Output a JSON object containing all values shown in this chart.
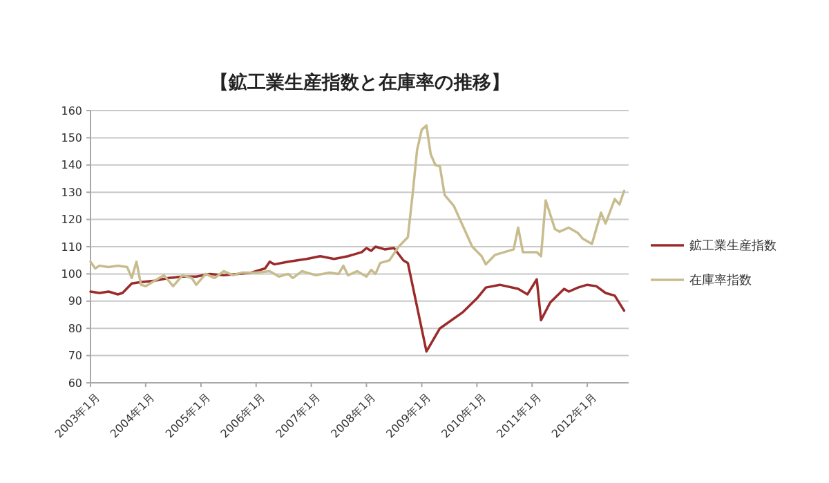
{
  "chart_data": {
    "type": "line",
    "title": "【鉱工業生産指数と在庫率の推移】",
    "xlim": [
      "2003-01",
      "2012-10"
    ],
    "xticks": [
      {
        "value": "2003-01",
        "label": "2003年1月"
      },
      {
        "value": "2004-01",
        "label": "2004年1月"
      },
      {
        "value": "2005-01",
        "label": "2005年1月"
      },
      {
        "value": "2006-01",
        "label": "2006年1月"
      },
      {
        "value": "2007-01",
        "label": "2007年1月"
      },
      {
        "value": "2008-01",
        "label": "2008年1月"
      },
      {
        "value": "2009-01",
        "label": "2009年1月"
      },
      {
        "value": "2010-01",
        "label": "2010年1月"
      },
      {
        "value": "2011-01",
        "label": "2011年1月"
      },
      {
        "value": "2012-01",
        "label": "2012年1月"
      }
    ],
    "ylim": [
      60,
      160
    ],
    "yticks": [
      60,
      70,
      80,
      90,
      100,
      110,
      120,
      130,
      140,
      150,
      160
    ],
    "grid": "y",
    "legend": "right",
    "marker": "none",
    "line_style": "solid",
    "series": [
      {
        "name": "鉱工業生産指数",
        "color": "#9b2a2a",
        "x": [
          "2003-01",
          "2003-03",
          "2003-05",
          "2003-07",
          "2003-08",
          "2003-10",
          "2003-12",
          "2004-03",
          "2004-06",
          "2004-09",
          "2004-12",
          "2005-03",
          "2005-06",
          "2005-09",
          "2005-12",
          "2006-03",
          "2006-04",
          "2006-05",
          "2006-08",
          "2006-12",
          "2007-03",
          "2007-06",
          "2007-09",
          "2007-12",
          "2008-01",
          "2008-02",
          "2008-03",
          "2008-05",
          "2008-07",
          "2008-09",
          "2008-10",
          "2009-02",
          "2009-05",
          "2009-10",
          "2010-01",
          "2010-03",
          "2010-06",
          "2010-10",
          "2010-12",
          "2011-02",
          "2011-03",
          "2011-05",
          "2011-08",
          "2011-09",
          "2011-11",
          "2012-01",
          "2012-03",
          "2012-05",
          "2012-07",
          "2012-09"
        ],
        "values": [
          93.5,
          93,
          93.5,
          92.5,
          93,
          96.5,
          97,
          97.5,
          98.5,
          99,
          99,
          100,
          99.5,
          100,
          100.5,
          102,
          104.5,
          103.5,
          104.5,
          105.5,
          106.5,
          105.5,
          106.5,
          108,
          109.5,
          108.5,
          110,
          109,
          109.5,
          105,
          104,
          71.5,
          80,
          86,
          91,
          95,
          96,
          94.5,
          92.5,
          98,
          83,
          89.5,
          94.5,
          93.5,
          95,
          96,
          95.5,
          93,
          92,
          86.5
        ]
      },
      {
        "name": "在庫率指数",
        "color": "#c8bc8e",
        "x": [
          "2003-01",
          "2003-02",
          "2003-03",
          "2003-05",
          "2003-07",
          "2003-09",
          "2003-10",
          "2003-11",
          "2003-12",
          "2004-01",
          "2004-03",
          "2004-05",
          "2004-07",
          "2004-09",
          "2004-11",
          "2004-12",
          "2005-02",
          "2005-04",
          "2005-06",
          "2005-08",
          "2005-10",
          "2006-01",
          "2006-04",
          "2006-06",
          "2006-08",
          "2006-09",
          "2006-11",
          "2007-02",
          "2007-05",
          "2007-07",
          "2007-08",
          "2007-09",
          "2007-11",
          "2008-01",
          "2008-02",
          "2008-03",
          "2008-04",
          "2008-06",
          "2008-08",
          "2008-10",
          "2008-11",
          "2008-12",
          "2009-01",
          "2009-02",
          "2009-03",
          "2009-04",
          "2009-05",
          "2009-06",
          "2009-08",
          "2009-10",
          "2009-12",
          "2010-02",
          "2010-03",
          "2010-05",
          "2010-08",
          "2010-09",
          "2010-10",
          "2010-11",
          "2011-02",
          "2011-03",
          "2011-04",
          "2011-06",
          "2011-07",
          "2011-09",
          "2011-11",
          "2011-12",
          "2012-02",
          "2012-04",
          "2012-05",
          "2012-07",
          "2012-08",
          "2012-09"
        ],
        "values": [
          104.5,
          102,
          103,
          102.5,
          103,
          102.5,
          98.5,
          104.5,
          96,
          95.5,
          97.5,
          99.5,
          95.5,
          99.5,
          98.5,
          96,
          100,
          98.5,
          101,
          99.5,
          100.5,
          100.5,
          101,
          99,
          100,
          98.5,
          101,
          99.5,
          100.5,
          100,
          103,
          99.5,
          101,
          99,
          101.5,
          100,
          104,
          105,
          110,
          113.5,
          129,
          145.5,
          153,
          154.5,
          144,
          140,
          139.5,
          129,
          125,
          117.5,
          110,
          106.5,
          103.5,
          107,
          108.5,
          109,
          117,
          108,
          108,
          106.5,
          127,
          116.5,
          115.5,
          117,
          115,
          113,
          111,
          122.5,
          118.5,
          127.5,
          125.5,
          130.5
        ]
      }
    ]
  }
}
